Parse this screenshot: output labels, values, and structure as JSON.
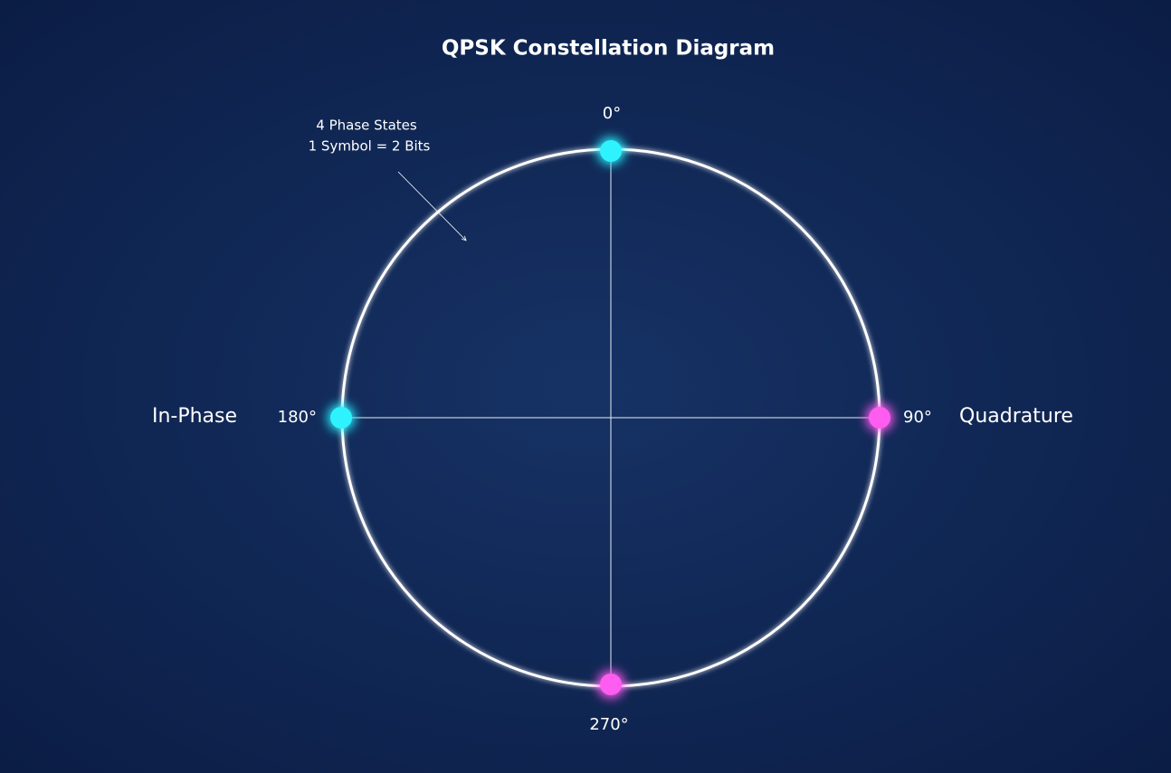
{
  "title": "QPSK Constellation Diagram",
  "annotation": {
    "lines": [
      "4 Phase States",
      "1 Symbol = 2 Bits"
    ]
  },
  "axes": {
    "in_phase": "In-Phase",
    "quadrature": "Quadrature"
  },
  "points": [
    {
      "label": "0°"
    },
    {
      "label": "90°"
    },
    {
      "label": "180°"
    },
    {
      "label": "270°"
    }
  ]
}
